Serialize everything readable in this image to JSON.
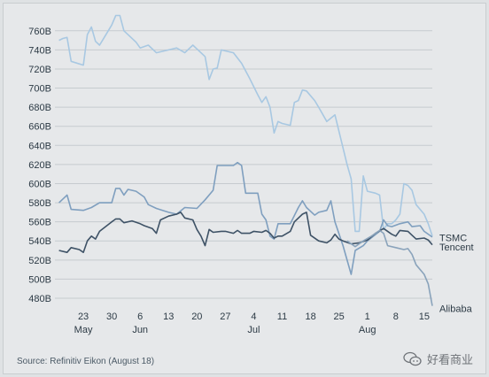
{
  "chart_data": {
    "type": "line",
    "title": "",
    "xlabel": "",
    "ylabel": "",
    "ylim": [
      480,
      770
    ],
    "yticks": [
      480,
      500,
      520,
      540,
      560,
      580,
      600,
      620,
      640,
      660,
      680,
      700,
      720,
      740,
      760
    ],
    "ytick_labels": [
      "480B",
      "500B",
      "520B",
      "540B",
      "560B",
      "580B",
      "600B",
      "620B",
      "640B",
      "660B",
      "680B",
      "700B",
      "720B",
      "740B",
      "760B"
    ],
    "xlim": [
      "2018-05-16",
      "2018-08-17"
    ],
    "xticks": [
      "2018-05-23",
      "2018-05-30",
      "2018-06-06",
      "2018-06-13",
      "2018-06-20",
      "2018-06-27",
      "2018-07-04",
      "2018-07-11",
      "2018-07-18",
      "2018-07-25",
      "2018-08-01",
      "2018-08-08",
      "2018-08-15"
    ],
    "xtick_labels": [
      "23",
      "30",
      "6",
      "13",
      "20",
      "27",
      "4",
      "11",
      "18",
      "25",
      "1",
      "8",
      "15"
    ],
    "month_labels": [
      {
        "label": "May",
        "date": "2018-05-23"
      },
      {
        "label": "Jun",
        "date": "2018-06-06"
      },
      {
        "label": "Jul",
        "date": "2018-07-04"
      },
      {
        "label": "Aug",
        "date": "2018-08-01"
      }
    ],
    "grid": true,
    "legend": "none",
    "series": [
      {
        "name": "Tencent",
        "color": "#a8c8e2",
        "points": [
          [
            "2018-05-17",
            750
          ],
          [
            "2018-05-18",
            752
          ],
          [
            "2018-05-19",
            753
          ],
          [
            "2018-05-20",
            728
          ],
          [
            "2018-05-23",
            724
          ],
          [
            "2018-05-24",
            756
          ],
          [
            "2018-05-25",
            764
          ],
          [
            "2018-05-26",
            749
          ],
          [
            "2018-05-27",
            745
          ],
          [
            "2018-05-28",
            752
          ],
          [
            "2018-05-30",
            766
          ],
          [
            "2018-05-31",
            776
          ],
          [
            "2018-06-01",
            776
          ],
          [
            "2018-06-02",
            760
          ],
          [
            "2018-06-05",
            748
          ],
          [
            "2018-06-06",
            742
          ],
          [
            "2018-06-08",
            745
          ],
          [
            "2018-06-10",
            737
          ],
          [
            "2018-06-13",
            740
          ],
          [
            "2018-06-15",
            742
          ],
          [
            "2018-06-17",
            737
          ],
          [
            "2018-06-19",
            745
          ],
          [
            "2018-06-20",
            741
          ],
          [
            "2018-06-22",
            733
          ],
          [
            "2018-06-23",
            709
          ],
          [
            "2018-06-24",
            720
          ],
          [
            "2018-06-25",
            721
          ],
          [
            "2018-06-26",
            740
          ],
          [
            "2018-06-27",
            739
          ],
          [
            "2018-06-29",
            737
          ],
          [
            "2018-07-01",
            726
          ],
          [
            "2018-07-03",
            710
          ],
          [
            "2018-07-05",
            693
          ],
          [
            "2018-07-06",
            685
          ],
          [
            "2018-07-07",
            691
          ],
          [
            "2018-07-08",
            680
          ],
          [
            "2018-07-09",
            653
          ],
          [
            "2018-07-10",
            665
          ],
          [
            "2018-07-11",
            663
          ],
          [
            "2018-07-13",
            661
          ],
          [
            "2018-07-14",
            685
          ],
          [
            "2018-07-15",
            687
          ],
          [
            "2018-07-16",
            698
          ],
          [
            "2018-07-17",
            697
          ],
          [
            "2018-07-19",
            687
          ],
          [
            "2018-07-20",
            680
          ],
          [
            "2018-07-22",
            665
          ],
          [
            "2018-07-24",
            672
          ],
          [
            "2018-07-27",
            620
          ],
          [
            "2018-07-28",
            605
          ],
          [
            "2018-07-29",
            550
          ],
          [
            "2018-07-30",
            550
          ],
          [
            "2018-07-31",
            608
          ],
          [
            "2018-08-01",
            592
          ],
          [
            "2018-08-03",
            590
          ],
          [
            "2018-08-04",
            588
          ],
          [
            "2018-08-05",
            552
          ],
          [
            "2018-08-06",
            558
          ],
          [
            "2018-08-07",
            558
          ],
          [
            "2018-08-08",
            562
          ],
          [
            "2018-08-09",
            568
          ],
          [
            "2018-08-10",
            600
          ],
          [
            "2018-08-11",
            598
          ],
          [
            "2018-08-12",
            593
          ],
          [
            "2018-08-13",
            578
          ],
          [
            "2018-08-15",
            568
          ],
          [
            "2018-08-16",
            558
          ],
          [
            "2018-08-17",
            545
          ]
        ]
      },
      {
        "name": "",
        "color": "#7f9fbf",
        "points": [
          [
            "2018-05-17",
            580
          ],
          [
            "2018-05-19",
            588
          ],
          [
            "2018-05-20",
            573
          ],
          [
            "2018-05-23",
            572
          ],
          [
            "2018-05-25",
            575
          ],
          [
            "2018-05-27",
            580
          ],
          [
            "2018-05-30",
            580
          ],
          [
            "2018-05-31",
            595
          ],
          [
            "2018-06-01",
            595
          ],
          [
            "2018-06-02",
            588
          ],
          [
            "2018-06-03",
            594
          ],
          [
            "2018-06-05",
            592
          ],
          [
            "2018-06-07",
            586
          ],
          [
            "2018-06-08",
            578
          ],
          [
            "2018-06-10",
            574
          ],
          [
            "2018-06-13",
            570
          ],
          [
            "2018-06-15",
            568
          ],
          [
            "2018-06-17",
            575
          ],
          [
            "2018-06-20",
            574
          ],
          [
            "2018-06-22",
            583
          ],
          [
            "2018-06-24",
            593
          ],
          [
            "2018-06-25",
            619
          ],
          [
            "2018-06-29",
            619
          ],
          [
            "2018-06-30",
            622
          ],
          [
            "2018-07-01",
            619
          ],
          [
            "2018-07-02",
            590
          ],
          [
            "2018-07-05",
            590
          ],
          [
            "2018-07-06",
            568
          ],
          [
            "2018-07-07",
            562
          ],
          [
            "2018-07-08",
            545
          ],
          [
            "2018-07-09",
            542
          ],
          [
            "2018-07-10",
            558
          ],
          [
            "2018-07-13",
            558
          ],
          [
            "2018-07-15",
            575
          ],
          [
            "2018-07-16",
            582
          ],
          [
            "2018-07-17",
            575
          ],
          [
            "2018-07-19",
            567
          ],
          [
            "2018-07-20",
            570
          ],
          [
            "2018-07-22",
            572
          ],
          [
            "2018-07-23",
            582
          ],
          [
            "2018-07-24",
            560
          ],
          [
            "2018-07-26",
            535
          ],
          [
            "2018-07-28",
            505
          ],
          [
            "2018-07-29",
            530
          ],
          [
            "2018-07-31",
            535
          ],
          [
            "2018-08-01",
            540
          ],
          [
            "2018-08-04",
            550
          ],
          [
            "2018-08-05",
            562
          ],
          [
            "2018-08-06",
            556
          ],
          [
            "2018-08-07",
            555
          ],
          [
            "2018-08-09",
            558
          ],
          [
            "2018-08-11",
            560
          ],
          [
            "2018-08-12",
            555
          ],
          [
            "2018-08-14",
            556
          ],
          [
            "2018-08-15",
            550
          ],
          [
            "2018-08-17",
            544
          ]
        ]
      },
      {
        "name": "TSMC",
        "color": "#3e5266",
        "points": [
          [
            "2018-05-17",
            530
          ],
          [
            "2018-05-19",
            528
          ],
          [
            "2018-05-20",
            533
          ],
          [
            "2018-05-22",
            531
          ],
          [
            "2018-05-23",
            528
          ],
          [
            "2018-05-24",
            540
          ],
          [
            "2018-05-25",
            545
          ],
          [
            "2018-05-26",
            542
          ],
          [
            "2018-05-27",
            550
          ],
          [
            "2018-05-30",
            560
          ],
          [
            "2018-05-31",
            563
          ],
          [
            "2018-06-01",
            563
          ],
          [
            "2018-06-02",
            559
          ],
          [
            "2018-06-04",
            561
          ],
          [
            "2018-06-06",
            558
          ],
          [
            "2018-06-07",
            556
          ],
          [
            "2018-06-09",
            553
          ],
          [
            "2018-06-10",
            548
          ],
          [
            "2018-06-11",
            562
          ],
          [
            "2018-06-13",
            566
          ],
          [
            "2018-06-15",
            568
          ],
          [
            "2018-06-16",
            570
          ],
          [
            "2018-06-17",
            564
          ],
          [
            "2018-06-19",
            562
          ],
          [
            "2018-06-20",
            552
          ],
          [
            "2018-06-21",
            545
          ],
          [
            "2018-06-22",
            535
          ],
          [
            "2018-06-23",
            552
          ],
          [
            "2018-06-24",
            549
          ],
          [
            "2018-06-26",
            550
          ],
          [
            "2018-06-27",
            550
          ],
          [
            "2018-06-29",
            548
          ],
          [
            "2018-06-30",
            551
          ],
          [
            "2018-07-01",
            548
          ],
          [
            "2018-07-03",
            548
          ],
          [
            "2018-07-04",
            550
          ],
          [
            "2018-07-06",
            549
          ],
          [
            "2018-07-07",
            551
          ],
          [
            "2018-07-08",
            548
          ],
          [
            "2018-07-09",
            543
          ],
          [
            "2018-07-10",
            545
          ],
          [
            "2018-07-11",
            545
          ],
          [
            "2018-07-13",
            550
          ],
          [
            "2018-07-14",
            560
          ],
          [
            "2018-07-16",
            568
          ],
          [
            "2018-07-17",
            570
          ],
          [
            "2018-07-18",
            546
          ],
          [
            "2018-07-20",
            540
          ],
          [
            "2018-07-22",
            538
          ],
          [
            "2018-07-23",
            541
          ],
          [
            "2018-07-24",
            547
          ],
          [
            "2018-07-25",
            542
          ],
          [
            "2018-07-26",
            540
          ],
          [
            "2018-07-28",
            537
          ],
          [
            "2018-07-30",
            538
          ],
          [
            "2018-08-01",
            541
          ],
          [
            "2018-08-03",
            548
          ],
          [
            "2018-08-05",
            553
          ],
          [
            "2018-08-07",
            547
          ],
          [
            "2018-08-08",
            545
          ],
          [
            "2018-08-09",
            551
          ],
          [
            "2018-08-11",
            550
          ],
          [
            "2018-08-12",
            546
          ],
          [
            "2018-08-13",
            542
          ],
          [
            "2018-08-15",
            543
          ],
          [
            "2018-08-16",
            541
          ],
          [
            "2018-08-17",
            536
          ]
        ]
      },
      {
        "name": "Alibaba",
        "color": "#8aa3bb",
        "points": [
          [
            "2018-07-27",
            540
          ],
          [
            "2018-07-29",
            534
          ],
          [
            "2018-07-31",
            540
          ],
          [
            "2018-08-02",
            545
          ],
          [
            "2018-08-04",
            551
          ],
          [
            "2018-08-05",
            548
          ],
          [
            "2018-08-06",
            535
          ],
          [
            "2018-08-08",
            533
          ],
          [
            "2018-08-10",
            531
          ],
          [
            "2018-08-11",
            532
          ],
          [
            "2018-08-12",
            526
          ],
          [
            "2018-08-13",
            515
          ],
          [
            "2018-08-15",
            505
          ],
          [
            "2018-08-16",
            495
          ],
          [
            "2018-08-17",
            472
          ]
        ]
      }
    ],
    "series_labels": [
      {
        "text": "TSMC",
        "series": "TSMC"
      },
      {
        "text": "Tencent",
        "series": "Tencent"
      },
      {
        "text": "Alibaba",
        "series": "Alibaba"
      }
    ]
  },
  "footer": {
    "source": "Source: Refinitiv Eikon (August 18)",
    "watermark": "好看商业"
  }
}
